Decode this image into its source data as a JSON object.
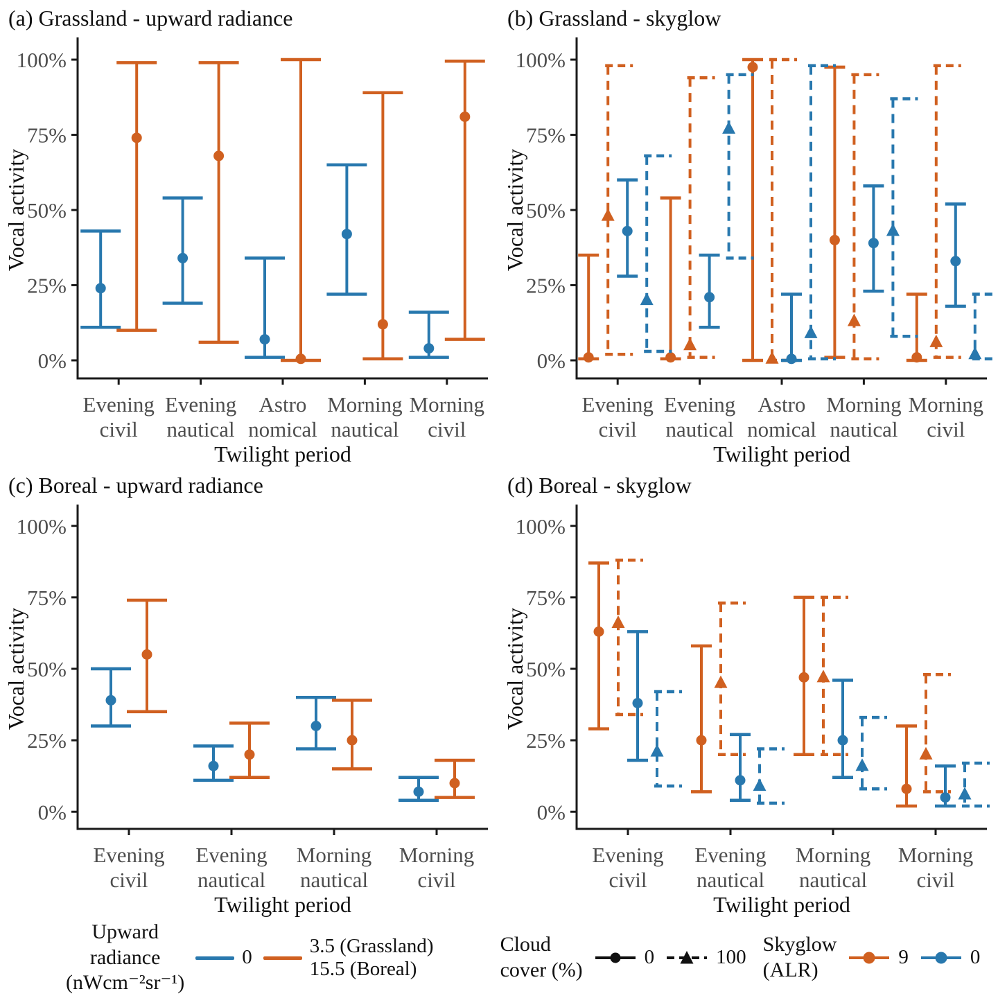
{
  "colors": {
    "orange": "#d06020",
    "blue": "#2878ae",
    "axis": "#1a1a1a",
    "tick_text": "#4d4d4d"
  },
  "chart_data": [
    {
      "type": "errorbar",
      "panel": "a",
      "title": "(a) Grassland - upward radiance",
      "xlabel": "Twilight period",
      "ylabel": "Vocal activity",
      "ylim": [
        0,
        100
      ],
      "grid": false,
      "yticks": [
        0,
        25,
        50,
        75,
        100
      ],
      "ytick_labels": [
        "0%",
        "25%",
        "50%",
        "75%",
        "100%"
      ],
      "categories": [
        "Evening civil",
        "Evening nautical",
        "Astro nomical",
        "Morning nautical",
        "Morning civil"
      ],
      "categories_lines": [
        [
          "Evening",
          "civil"
        ],
        [
          "Evening",
          "nautical"
        ],
        [
          "Astro",
          "nomical"
        ],
        [
          "Morning",
          "nautical"
        ],
        [
          "Morning",
          "civil"
        ]
      ],
      "series": [
        {
          "name": "Upward radiance 0",
          "color": "#2878ae",
          "line": "solid",
          "marker": "circle",
          "est": [
            24,
            34,
            7,
            42,
            4
          ],
          "lo": [
            11,
            19,
            1,
            22,
            1
          ],
          "hi": [
            43,
            54,
            34,
            65,
            16
          ]
        },
        {
          "name": "Upward radiance 3.5 (Grassland)",
          "color": "#d06020",
          "line": "solid",
          "marker": "circle",
          "est": [
            74,
            68,
            0.5,
            12,
            81
          ],
          "lo": [
            10,
            6,
            0,
            0.5,
            7
          ],
          "hi": [
            99,
            99,
            100,
            89,
            99.5
          ]
        }
      ]
    },
    {
      "type": "errorbar",
      "panel": "b",
      "title": "(b) Grassland - skyglow",
      "xlabel": "Twilight period",
      "ylabel": "Vocal activity",
      "ylim": [
        0,
        100
      ],
      "grid": false,
      "yticks": [
        0,
        25,
        50,
        75,
        100
      ],
      "ytick_labels": [
        "0%",
        "25%",
        "50%",
        "75%",
        "100%"
      ],
      "categories": [
        "Evening civil",
        "Evening nautical",
        "Astro nomical",
        "Morning nautical",
        "Morning civil"
      ],
      "categories_lines": [
        [
          "Evening",
          "civil"
        ],
        [
          "Evening",
          "nautical"
        ],
        [
          "Astro",
          "nomical"
        ],
        [
          "Morning",
          "nautical"
        ],
        [
          "Morning",
          "civil"
        ]
      ],
      "series": [
        {
          "name": "Skyglow 9, cloud cover 0",
          "color": "#d06020",
          "line": "solid",
          "marker": "circle",
          "est": [
            1,
            1,
            97.5,
            40,
            1
          ],
          "lo": [
            0.5,
            0.5,
            0,
            1,
            0
          ],
          "hi": [
            35,
            54,
            100,
            97.5,
            22
          ]
        },
        {
          "name": "Skyglow 9, cloud cover 100",
          "color": "#d06020",
          "line": "dashed",
          "marker": "triangle",
          "est": [
            48,
            5,
            0.5,
            13,
            6
          ],
          "lo": [
            2,
            1,
            0,
            0.5,
            1
          ],
          "hi": [
            98,
            94,
            100,
            95,
            98
          ]
        },
        {
          "name": "Skyglow 0, cloud cover 0",
          "color": "#2878ae",
          "line": "solid",
          "marker": "circle",
          "est": [
            43,
            21,
            0.5,
            39,
            33
          ],
          "lo": [
            28,
            11,
            0,
            23,
            18
          ],
          "hi": [
            60,
            35,
            22,
            58,
            52
          ]
        },
        {
          "name": "Skyglow 0, cloud cover 100",
          "color": "#2878ae",
          "line": "dashed",
          "marker": "triangle",
          "est": [
            20,
            77,
            9,
            43,
            2
          ],
          "lo": [
            3,
            34,
            0.5,
            8,
            0.5
          ],
          "hi": [
            68,
            95,
            98,
            87,
            22
          ]
        }
      ]
    },
    {
      "type": "errorbar",
      "panel": "c",
      "title": "(c) Boreal - upward radiance",
      "xlabel": "Twilight period",
      "ylabel": "Vocal activity",
      "ylim": [
        0,
        100
      ],
      "grid": false,
      "yticks": [
        0,
        25,
        50,
        75,
        100
      ],
      "ytick_labels": [
        "0%",
        "25%",
        "50%",
        "75%",
        "100%"
      ],
      "categories": [
        "Evening civil",
        "Evening nautical",
        "Morning nautical",
        "Morning civil"
      ],
      "categories_lines": [
        [
          "Evening",
          "civil"
        ],
        [
          "Evening",
          "nautical"
        ],
        [
          "Morning",
          "nautical"
        ],
        [
          "Morning",
          "civil"
        ]
      ],
      "series": [
        {
          "name": "Upward radiance 0",
          "color": "#2878ae",
          "line": "solid",
          "marker": "circle",
          "est": [
            39,
            16,
            30,
            7
          ],
          "lo": [
            30,
            11,
            22,
            4
          ],
          "hi": [
            50,
            23,
            40,
            12
          ]
        },
        {
          "name": "Upward radiance 15.5 (Boreal)",
          "color": "#d06020",
          "line": "solid",
          "marker": "circle",
          "est": [
            55,
            20,
            25,
            10
          ],
          "lo": [
            35,
            12,
            15,
            5
          ],
          "hi": [
            74,
            31,
            39,
            18
          ]
        }
      ]
    },
    {
      "type": "errorbar",
      "panel": "d",
      "title": "(d) Boreal - skyglow",
      "xlabel": "Twilight period",
      "ylabel": "Vocal activity",
      "ylim": [
        0,
        100
      ],
      "grid": false,
      "yticks": [
        0,
        25,
        50,
        75,
        100
      ],
      "ytick_labels": [
        "0%",
        "25%",
        "50%",
        "75%",
        "100%"
      ],
      "categories": [
        "Evening civil",
        "Evening nautical",
        "Morning nautical",
        "Morning civil"
      ],
      "categories_lines": [
        [
          "Evening",
          "civil"
        ],
        [
          "Evening",
          "nautical"
        ],
        [
          "Morning",
          "nautical"
        ],
        [
          "Morning",
          "civil"
        ]
      ],
      "series": [
        {
          "name": "Skyglow 9, cloud cover 0",
          "color": "#d06020",
          "line": "solid",
          "marker": "circle",
          "est": [
            63,
            25,
            47,
            8
          ],
          "lo": [
            29,
            7,
            20,
            2
          ],
          "hi": [
            87,
            58,
            75,
            30
          ]
        },
        {
          "name": "Skyglow 9, cloud cover 100",
          "color": "#d06020",
          "line": "dashed",
          "marker": "triangle",
          "est": [
            66,
            45,
            47,
            20
          ],
          "lo": [
            34,
            20,
            20,
            7
          ],
          "hi": [
            88,
            73,
            75,
            48
          ]
        },
        {
          "name": "Skyglow 0, cloud cover 0",
          "color": "#2878ae",
          "line": "solid",
          "marker": "circle",
          "est": [
            38,
            11,
            25,
            5
          ],
          "lo": [
            18,
            4,
            12,
            2
          ],
          "hi": [
            63,
            27,
            46,
            16
          ]
        },
        {
          "name": "Skyglow 0, cloud cover 100",
          "color": "#2878ae",
          "line": "dashed",
          "marker": "triangle",
          "est": [
            21,
            9,
            16,
            6
          ],
          "lo": [
            9,
            3,
            8,
            2
          ],
          "hi": [
            42,
            22,
            33,
            17
          ]
        }
      ]
    }
  ],
  "legends": {
    "radiance": {
      "title_lines": [
        "Upward",
        "radiance",
        "(nWcm⁻²sr⁻¹)"
      ],
      "entries": [
        {
          "label": "0",
          "color": "#2878ae"
        },
        {
          "label_lines": [
            "3.5 (Grassland)",
            "15.5 (Boreal)"
          ],
          "color": "#d06020"
        }
      ]
    },
    "cloud_cover": {
      "title_lines": [
        "Cloud",
        "cover (%)"
      ],
      "entries": [
        {
          "label": "0",
          "line": "solid",
          "marker": "circle"
        },
        {
          "label": "100",
          "line": "dashed",
          "marker": "triangle"
        }
      ]
    },
    "skyglow": {
      "title_lines": [
        "Skyglow",
        "(ALR)"
      ],
      "entries": [
        {
          "label": "9",
          "color": "#d06020"
        },
        {
          "label": "0",
          "color": "#2878ae"
        }
      ]
    }
  }
}
